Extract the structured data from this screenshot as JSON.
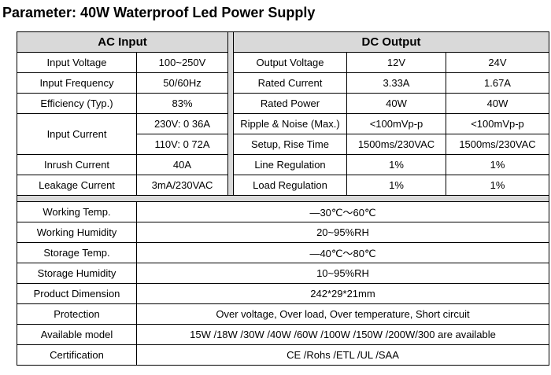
{
  "title": "Parameter: 40W Waterproof Led Power Supply",
  "ac_input": {
    "header": "AC Input",
    "rows": [
      {
        "label": "Input Voltage",
        "value": "100~250V"
      },
      {
        "label": "Input Frequency",
        "value": "50/60Hz"
      },
      {
        "label": "Efficiency (Typ.)",
        "value": "83%"
      },
      {
        "label": "Input Current",
        "values": [
          "230V: 0 36A",
          "110V: 0 72A"
        ]
      },
      {
        "label": "Inrush Current",
        "value": "40A"
      },
      {
        "label": "Leakage Current",
        "value": "3mA/230VAC"
      }
    ]
  },
  "dc_output": {
    "header": "DC Output",
    "rows": [
      {
        "label": "Output Voltage",
        "v12": "12V",
        "v24": "24V"
      },
      {
        "label": "Rated Current",
        "v12": "3.33A",
        "v24": "1.67A"
      },
      {
        "label": "Rated Power",
        "v12": "40W",
        "v24": "40W"
      },
      {
        "label": "Ripple & Noise (Max.)",
        "v12": "<100mVp-p",
        "v24": "<100mVp-p"
      },
      {
        "label": "Setup, Rise Time",
        "v12": "1500ms/230VAC",
        "v24": "1500ms/230VAC"
      },
      {
        "label": "Line Regulation",
        "v12": "1%",
        "v24": "1%"
      },
      {
        "label": "Load Regulation",
        "v12": "1%",
        "v24": "1%"
      }
    ]
  },
  "general": [
    {
      "label": "Working Temp.",
      "value": "—30℃～60℃"
    },
    {
      "label": "Working Humidity",
      "value": "20~95%RH"
    },
    {
      "label": "Storage Temp.",
      "value": "—40℃～80℃"
    },
    {
      "label": "Storage Humidity",
      "value": "10~95%RH"
    },
    {
      "label": "Product Dimension",
      "value": "242*29*21mm"
    },
    {
      "label": "Protection",
      "value": "Over voltage, Over load, Over temperature, Short circuit"
    },
    {
      "label": "Available model",
      "value": "15W /18W /30W /40W /60W /100W /150W /200W/300  are available"
    },
    {
      "label": "Certification",
      "value": "CE /Rohs /ETL /UL /SAA"
    }
  ]
}
